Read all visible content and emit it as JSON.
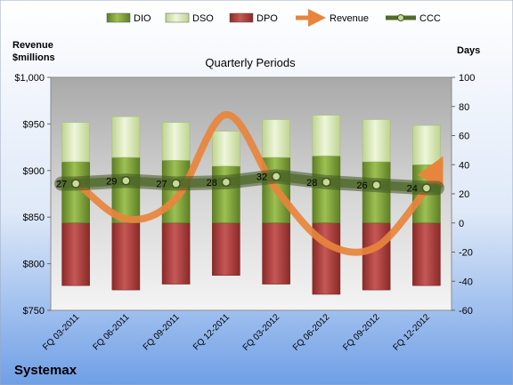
{
  "chart_data": {
    "type": "bar",
    "title": "Quarterly Periods",
    "company": "Systemax",
    "left_axis_label_line1": "Revenue",
    "left_axis_label_line2": "$millions",
    "right_axis_label": "Days",
    "categories": [
      "FQ 03-2011",
      "FQ 06-2011",
      "FQ 09-2011",
      "FQ 12-2011",
      "FQ 03-2012",
      "FQ 06-2012",
      "FQ 09-2012",
      "FQ 12-2012"
    ],
    "left_axis": {
      "min": 750,
      "max": 1000,
      "ticks": [
        750,
        800,
        850,
        900,
        950,
        1000
      ],
      "tick_labels": [
        "$750",
        "$800",
        "$850",
        "$900",
        "$950",
        "$1,000"
      ]
    },
    "right_axis": {
      "min": -60,
      "max": 100,
      "ticks": [
        -60,
        -40,
        -20,
        0,
        20,
        40,
        60,
        80,
        100
      ],
      "tick_labels": [
        "-60",
        "-40",
        "-20",
        "0",
        "20",
        "40",
        "60",
        "80",
        "100"
      ]
    },
    "legend": [
      {
        "name": "DIO",
        "swatch": "bar",
        "color": "#7ea23a"
      },
      {
        "name": "DSO",
        "swatch": "bar",
        "color": "#d6e6b4"
      },
      {
        "name": "DPO",
        "swatch": "bar",
        "color": "#a83c3a"
      },
      {
        "name": "Revenue",
        "swatch": "arrow",
        "color": "#e8843c"
      },
      {
        "name": "CCC",
        "swatch": "line-dot",
        "color": "#4f6a2a"
      }
    ],
    "series": [
      {
        "name": "DIO",
        "axis": "right",
        "color": "#7ea23a",
        "values": [
          42,
          45,
          43,
          39,
          45,
          46,
          42,
          40
        ]
      },
      {
        "name": "DSO",
        "axis": "right",
        "color": "#d6e6b4",
        "values": [
          27,
          28,
          26,
          24,
          26,
          28,
          29,
          27
        ]
      },
      {
        "name": "DPO",
        "axis": "right",
        "color": "#a83c3a",
        "values": [
          -43,
          -46,
          -42,
          -36,
          -42,
          -49,
          -46,
          -43
        ]
      },
      {
        "name": "Revenue",
        "axis": "left",
        "color": "#e8843c",
        "values": [
          888,
          848,
          870,
          960,
          880,
          822,
          818,
          880
        ]
      },
      {
        "name": "CCC",
        "axis": "right",
        "color": "#4f6a2a",
        "values": [
          27,
          29,
          27,
          28,
          32,
          28,
          26,
          24
        ],
        "labels": [
          "27",
          "29",
          "27",
          "28",
          "32",
          "28",
          "26",
          "24"
        ]
      }
    ]
  }
}
